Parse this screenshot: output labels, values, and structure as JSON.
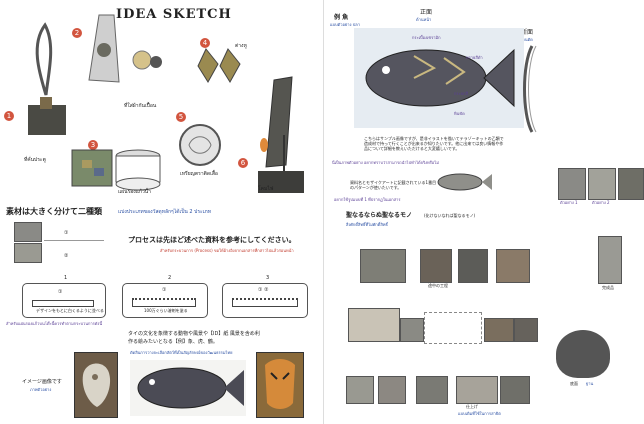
{
  "left_page": {
    "title": "IDEA SKETCH",
    "items": [
      {
        "number": "1",
        "label": "ที่คั่นประตู"
      },
      {
        "number": "2",
        "label": "ที่ใส่ผ้ากันเปื้อน"
      },
      {
        "number": "3",
        "label": "แผ่นรองแก้วน้ำ"
      },
      {
        "number": "4",
        "label": "ต่างหู"
      },
      {
        "number": "5",
        "label": "เหรียญตราติดเสื้อ"
      },
      {
        "number": "6",
        "label": "โคมไฟ"
      }
    ],
    "section1": {
      "heading": "素材は大きく分けて二種類",
      "subheading": "แบ่งประเภทของวัสดุหลักๆได้เป็น 2 ประเภท",
      "row_labels": [
        "①",
        "②"
      ]
    },
    "section2": {
      "heading": "プロセスは先ほど述べた資料を参考にしてください。",
      "subheading": "สำหรับกระบวนการ (Process) ขอให้อ้างอิงจากเอกสารที่กล่าวไปแล้วก่อนหน้า",
      "steps": [
        {
          "n": "1",
          "marks": "①",
          "note": "デザインをもとに白くるように並べる"
        },
        {
          "n": "2",
          "marks": "①",
          "note": "100万ぐらい溶剤を塗る"
        },
        {
          "n": "3",
          "marks": "① ②",
          "note": ""
        }
      ],
      "footnote": "สำหรับแผ่นรองแก้วบนโต๊ะนี้ควรทำตามกระบวนการดังนี้"
    },
    "section3": {
      "text_jp_1": "タイの文化を象徴する動物や風景や【ID】紙 風景を含め利",
      "text_jp_2": "作る絵みたいとなる【例】象、虎、鶴。",
      "text_th": "ตัดสินการวางจะเลือกสัตว์ที่เป็นสัญลักษณ์ของวัฒนธรรมไทย",
      "image_label_jp": "イメージ画像です",
      "image_label_th": "ภาพตัวอย่าง"
    }
  },
  "right_page": {
    "fish_title_jp": "例 魚",
    "fish_title_th": "แบบตัวอย่าง ปลา",
    "front_label_jp": "正面",
    "front_label_th": "ด้านหน้า",
    "section_label_jp": "断面",
    "section_label_th": "ด้านตัด",
    "fish_callouts": [
      "กระเบื้องเซรามิก",
      "ทรายสีดำ",
      "กระจกสี",
      "หินขัด"
    ],
    "description_jp": "こちらはサンプル画像ですが、是非イラストを描いてテラゾーキットの乙類で造成材で持って行くことが出来るか知りたいです。他に出来ては良い情報や作品について詳細を教えいただけると大変嬉しいです。",
    "description_th": "นี่เป็นภาพตัวอย่าง อยากทราบว่าสามารถนำไปทำได้จริงหรือไม่",
    "material_note_jp": "資料名とモザイクアートに記載されている1番目のパターンが使いたいです。",
    "material_note_th": "อยากใช้รูปแบบที่ 1 ที่ปรากฏในเอกสาร",
    "thumb_captions": [
      "ตัวอย่าง 1",
      "ตัวอย่าง 2"
    ],
    "bottom_heading_jp": "聖なるならぬ聖なるモノ",
    "bottom_heading_note": "(化けないなれば聖なるモノ)",
    "bottom_subheading": "สิ่งศักดิ์สิทธิ์ที่ไม่ศักดิ์สิทธิ์",
    "photo_captions": [
      "途中の工程",
      "完成品",
      "仕上げ"
    ],
    "bottom_th_caption": "แบบเดิมที่ใช้ในการสาธิต",
    "final_label_jp": "底面",
    "final_label_th": "ฐาน"
  },
  "colors": {
    "accent_blue": "#2a4fa3",
    "accent_purple": "#5a3f95",
    "number_badge": "#d2553f"
  }
}
